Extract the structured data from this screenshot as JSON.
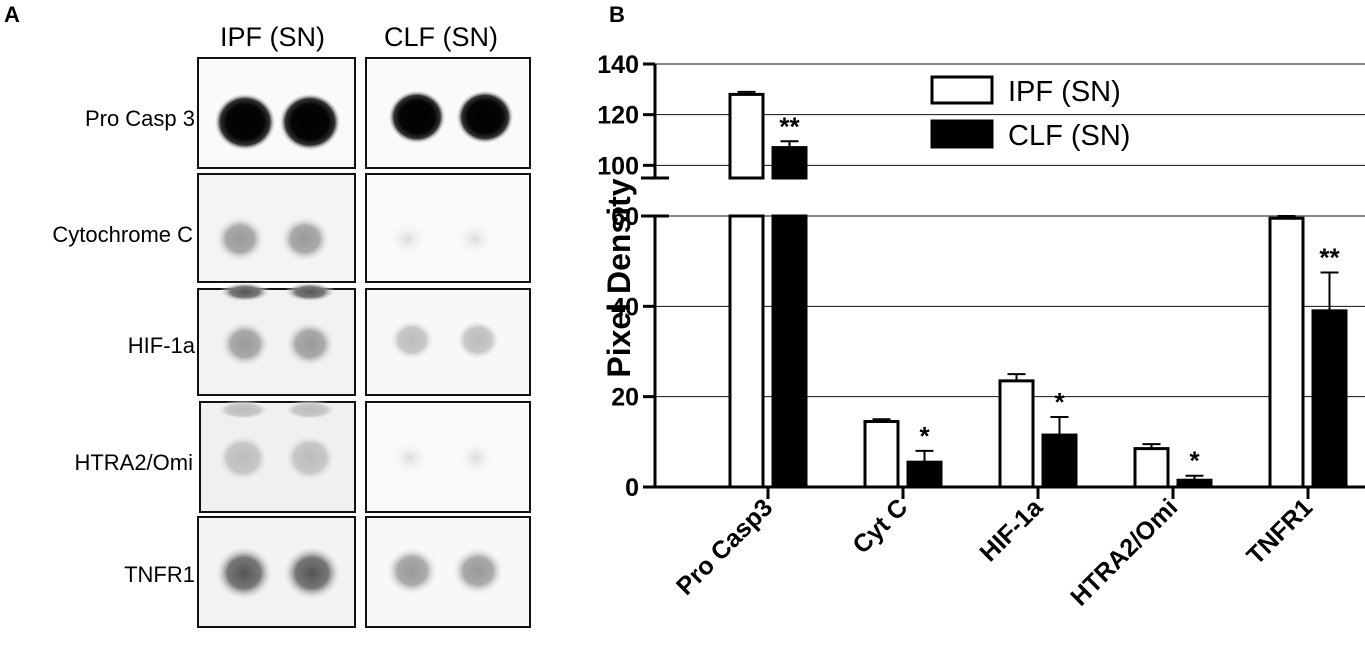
{
  "panel_a": {
    "letter": "A",
    "column_headers": [
      "IPF (SN)",
      "CLF (SN)"
    ],
    "rows": [
      {
        "label": "Pro Casp 3"
      },
      {
        "label": "Cytochrome C"
      },
      {
        "label": "HIF-1a"
      },
      {
        "label": "HTRA2/Omi"
      },
      {
        "label": "TNFR1"
      }
    ]
  },
  "panel_b": {
    "letter": "B"
  },
  "chart_data": {
    "type": "bar",
    "ylabel": "Pixel Density",
    "categories": [
      "Pro Casp3",
      "Cyt C",
      "HIF-1a",
      "HTRA2/Omi",
      "TNFR1"
    ],
    "series": [
      {
        "name": "IPF (SN)",
        "fill": "#ffffff",
        "values": [
          128,
          14.5,
          23.5,
          8.5,
          59.5
        ],
        "errors": [
          1.0,
          0.5,
          1.5,
          1.0,
          0.5
        ]
      },
      {
        "name": "CLF (SN)",
        "fill": "#000000",
        "values": [
          107,
          5.5,
          11.5,
          1.5,
          39
        ],
        "errors": [
          2.5,
          2.5,
          4.0,
          1.0,
          8.5
        ]
      }
    ],
    "significance": [
      {
        "category": "Pro Casp3",
        "label": "**"
      },
      {
        "category": "Cyt C",
        "label": "*"
      },
      {
        "category": "HIF-1a",
        "label": "*"
      },
      {
        "category": "HTRA2/Omi",
        "label": "*"
      },
      {
        "category": "TNFR1",
        "label": "**"
      }
    ],
    "y_axis_break": {
      "lower_range": [
        0,
        60
      ],
      "upper_range": [
        95,
        140
      ]
    },
    "yticks_lower": [
      0,
      20,
      40,
      60
    ],
    "yticks_upper": [
      100,
      120,
      140
    ],
    "grid": true,
    "legend_position": "top-center"
  }
}
